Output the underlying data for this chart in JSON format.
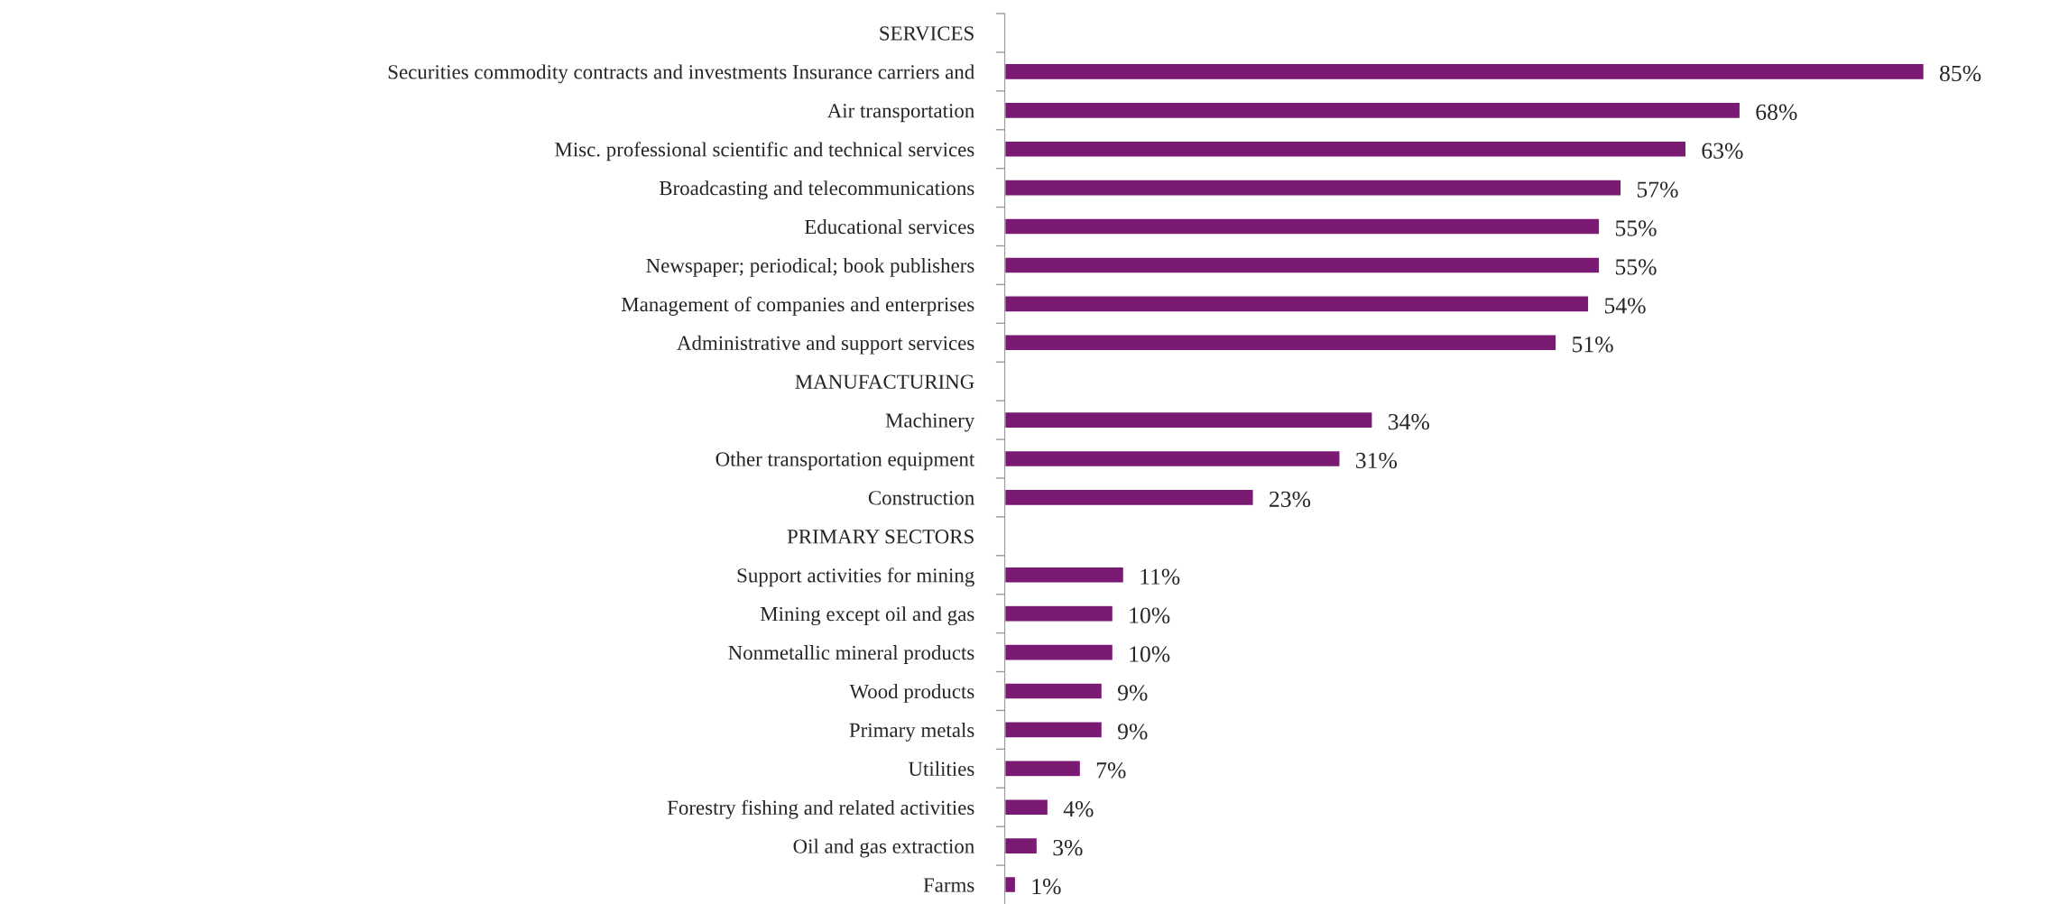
{
  "chart_data": {
    "type": "bar",
    "orientation": "horizontal",
    "color": "#7b1a72",
    "categories": [
      "SERVICES",
      "Securities commodity contracts and investments Insurance carriers and",
      "Air transportation",
      "Misc. professional scientific and technical services",
      "Broadcasting and telecommunications",
      "Educational services",
      "Newspaper; periodical; book publishers",
      "Management of companies and enterprises",
      "Administrative and support services",
      "MANUFACTURING",
      "Machinery",
      "Other transportation equipment",
      "Construction",
      "PRIMARY SECTORS",
      "Support activities for mining",
      "Mining except oil and gas",
      "Nonmetallic mineral products",
      "Wood products",
      "Primary metals",
      "Utilities",
      "Forestry fishing and related activities",
      "Oil and gas extraction",
      "Farms"
    ],
    "values": [
      null,
      85,
      68,
      63,
      57,
      55,
      55,
      54,
      51,
      null,
      34,
      31,
      23,
      null,
      11,
      10,
      10,
      9,
      9,
      7,
      4,
      3,
      1
    ],
    "value_labels": [
      null,
      "85%",
      "68%",
      "63%",
      "57%",
      "55%",
      "55%",
      "54%",
      "51%",
      null,
      "34%",
      "31%",
      "23%",
      null,
      "11%",
      "10%",
      "10%",
      "9%",
      "9%",
      "7%",
      "4%",
      "3%",
      "1%"
    ],
    "grid": false,
    "legend": false
  }
}
